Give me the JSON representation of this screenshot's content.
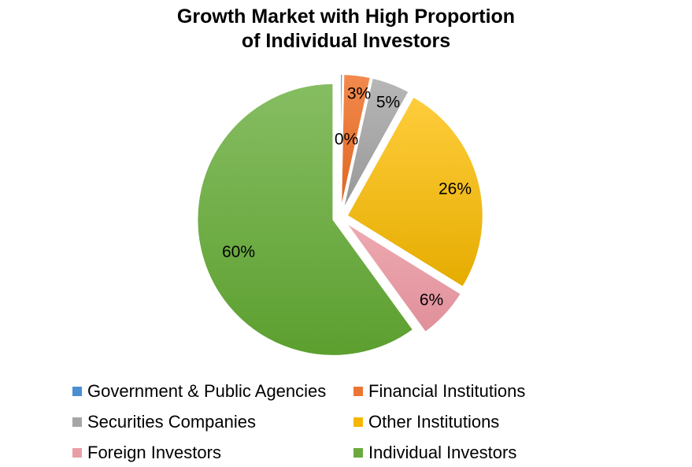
{
  "chart_data": {
    "type": "pie",
    "title": [
      "Growth Market with High Proportion",
      "of Individual Investors"
    ],
    "slices": [
      {
        "label": "Government & Public Agencies",
        "value": 0.3,
        "display": "0%",
        "color": "#4a8fd0"
      },
      {
        "label": "Financial Institutions",
        "value": 3.2,
        "display": "3%",
        "color": "#ec7535"
      },
      {
        "label": "Securities Companies",
        "value": 4.6,
        "display": "5%",
        "color": "#a6a6a6"
      },
      {
        "label": "Other Institutions",
        "value": 25.7,
        "display": "26%",
        "color": "#f5b700"
      },
      {
        "label": "Foreign Investors",
        "value": 6.2,
        "display": "6%",
        "color": "#e99ea6"
      },
      {
        "label": "Individual Investors",
        "value": 60.0,
        "display": "60%",
        "color": "#6aaa3c"
      }
    ],
    "exploded": true,
    "legend_position": "bottom"
  }
}
